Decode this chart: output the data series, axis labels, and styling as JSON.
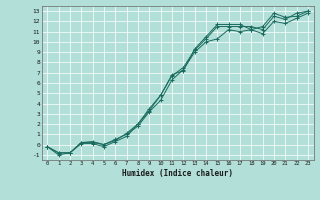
{
  "xlabel": "Humidex (Indice chaleur)",
  "background_color": "#b2dfd8",
  "grid_color": "#ffffff",
  "line_color": "#1a6b5e",
  "xlim": [
    -0.5,
    23.5
  ],
  "ylim": [
    -1.5,
    13.5
  ],
  "xticks": [
    0,
    1,
    2,
    3,
    4,
    5,
    6,
    7,
    8,
    9,
    10,
    11,
    12,
    13,
    14,
    15,
    16,
    17,
    18,
    19,
    20,
    21,
    22,
    23
  ],
  "yticks": [
    -1,
    0,
    1,
    2,
    3,
    4,
    5,
    6,
    7,
    8,
    9,
    10,
    11,
    12,
    13
  ],
  "line1_x": [
    0,
    1,
    2,
    3,
    4,
    5,
    6,
    7,
    8,
    9,
    10,
    11,
    12,
    13,
    14,
    15,
    16,
    17,
    18,
    19,
    20,
    21,
    22,
    23
  ],
  "line1_y": [
    -0.2,
    -0.8,
    -0.8,
    0.2,
    0.2,
    0.0,
    0.5,
    1.0,
    1.8,
    3.2,
    4.3,
    6.3,
    7.3,
    9.0,
    10.0,
    10.3,
    11.2,
    11.0,
    11.2,
    10.8,
    12.0,
    11.8,
    12.3,
    12.8
  ],
  "line2_x": [
    0,
    1,
    2,
    3,
    4,
    5,
    6,
    7,
    8,
    9,
    10,
    11,
    12,
    13,
    14,
    15,
    16,
    17,
    18,
    19,
    20,
    21,
    22,
    23
  ],
  "line2_y": [
    -0.2,
    -0.8,
    -0.8,
    0.2,
    0.3,
    0.0,
    0.4,
    1.1,
    2.0,
    3.5,
    4.8,
    6.7,
    7.5,
    9.2,
    10.3,
    11.5,
    11.5,
    11.5,
    11.5,
    11.2,
    12.5,
    12.2,
    12.8,
    13.0
  ],
  "line3_x": [
    0,
    1,
    2,
    3,
    4,
    5,
    6,
    7,
    8,
    9,
    10,
    11,
    12,
    13,
    14,
    15,
    16,
    17,
    18,
    19,
    20,
    21,
    22,
    23
  ],
  "line3_y": [
    -0.2,
    -1.0,
    -0.8,
    0.1,
    0.1,
    -0.2,
    0.3,
    0.8,
    2.0,
    3.3,
    4.8,
    6.8,
    7.2,
    9.3,
    10.5,
    11.7,
    11.7,
    11.7,
    11.2,
    11.5,
    12.8,
    12.4,
    12.5,
    13.0
  ]
}
